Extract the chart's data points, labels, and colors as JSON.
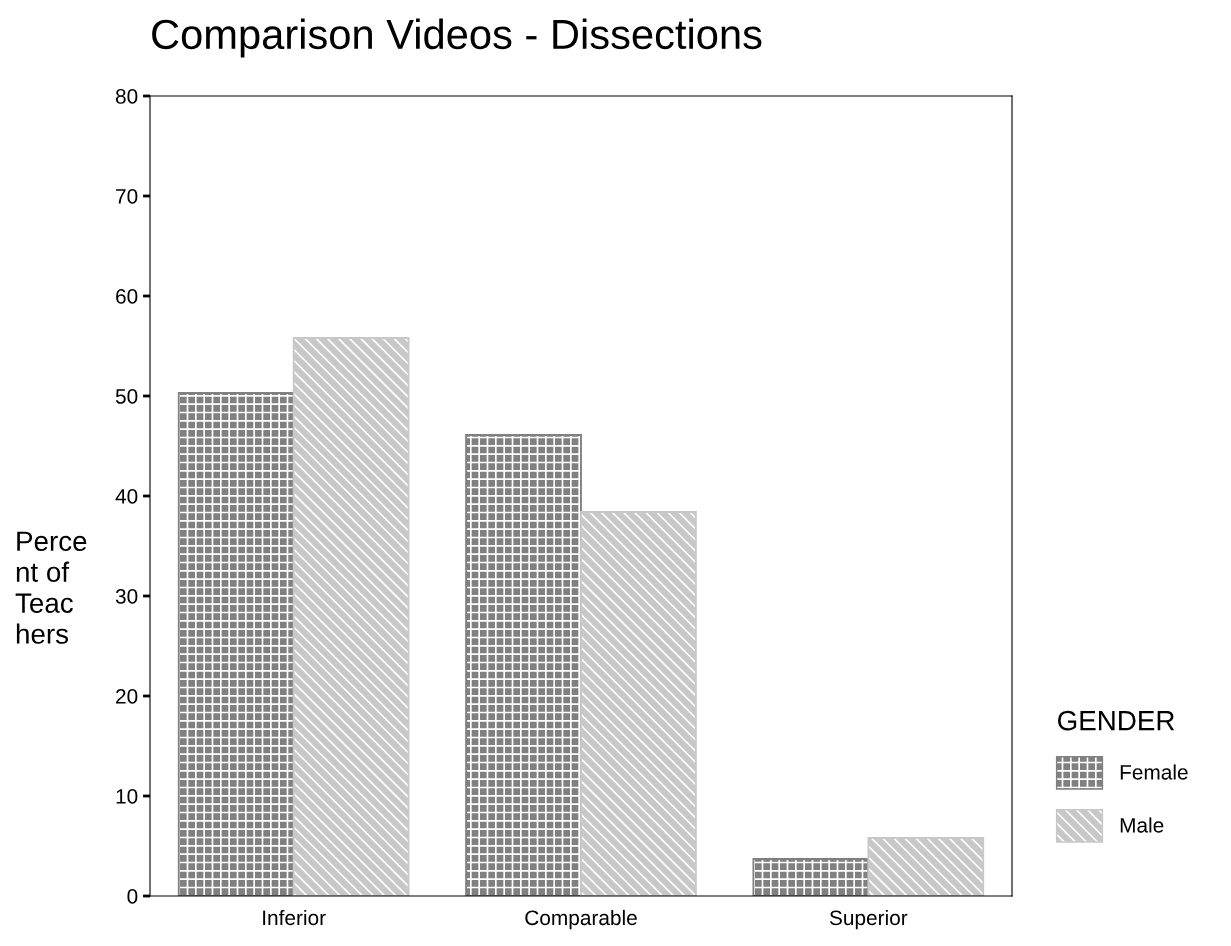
{
  "chart_data": {
    "type": "bar",
    "title": "Comparison Videos - Dissections",
    "ylabel": "Perce\nnt of\nTeac\nhers",
    "legend_title": "GENDER",
    "categories": [
      "Inferior",
      "Comparable",
      "Superior"
    ],
    "series": [
      {
        "name": "Female",
        "color": "#808080",
        "values": [
          50.3,
          46.1,
          3.7
        ]
      },
      {
        "name": "Male",
        "color": "#c8c8c8",
        "values": [
          55.8,
          38.4,
          5.8
        ]
      }
    ],
    "ylim": [
      0,
      80
    ],
    "yticks": [
      0,
      10,
      20,
      30,
      40,
      50,
      60,
      70,
      80
    ],
    "grid": false,
    "legend": "right"
  }
}
